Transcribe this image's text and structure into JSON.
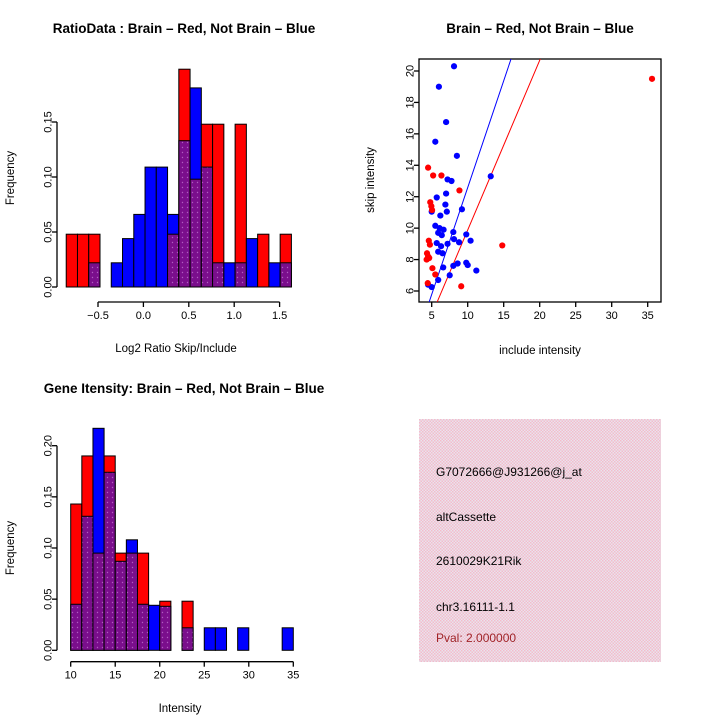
{
  "colors": {
    "red": "#ff0000",
    "blue": "#0000ff",
    "overlap": "#7a0e8c",
    "overlap_dot": "#b05cc0",
    "axis": "#000000",
    "background": "#ffffff"
  },
  "chart_data": [
    {
      "id": "ratio_hist",
      "type": "bar",
      "subtype": "overlaid-histogram",
      "title": "RatioData : Brain – Red, Not Brain – Blue",
      "xlabel": "Log2 Ratio Skip/Include",
      "ylabel": "Frequency",
      "bin_start": -0.85,
      "bin_width": 0.124,
      "xlim": [
        -0.85,
        1.63
      ],
      "ylim": [
        0,
        0.2
      ],
      "grid": false,
      "x_ticks": {
        "values": [
          -0.5,
          0.0,
          0.5,
          1.0,
          1.5
        ],
        "labels": [
          "−0.5",
          "0.0",
          "0.5",
          "1.0",
          "1.5"
        ]
      },
      "y_ticks": {
        "values": [
          0,
          0.05,
          0.1,
          0.15
        ],
        "labels": [
          "0.00",
          "0.05",
          "0.10",
          "0.15"
        ]
      },
      "series": [
        {
          "name": "Brain (red)",
          "color": "red",
          "values": [
            0.048,
            0.048,
            0.048,
            0,
            0,
            0,
            0,
            0,
            0,
            0.048,
            0.198,
            0.098,
            0.148,
            0.148,
            0,
            0.148,
            0,
            0.048,
            0,
            0.048
          ]
        },
        {
          "name": "Not Brain (blue)",
          "color": "blue",
          "values": [
            0,
            0,
            0.022,
            0,
            0.022,
            0.044,
            0.066,
            0.109,
            0.109,
            0.066,
            0.133,
            0.181,
            0.109,
            0.022,
            0.022,
            0.022,
            0.044,
            0,
            0.022,
            0.022
          ]
        }
      ]
    },
    {
      "id": "scatter",
      "type": "scatter",
      "title": "Brain – Red, Not Brain – Blue",
      "xlabel": "include intensity",
      "ylabel": "skip intensity",
      "xlim": [
        3.2,
        37
      ],
      "ylim": [
        5.3,
        20.8
      ],
      "grid": false,
      "x_ticks": {
        "values": [
          5,
          10,
          15,
          20,
          25,
          30,
          35
        ],
        "labels": [
          "5",
          "10",
          "15",
          "20",
          "25",
          "30",
          "35"
        ]
      },
      "y_ticks": {
        "values": [
          6,
          8,
          10,
          12,
          14,
          16,
          18,
          20
        ],
        "labels": [
          "6",
          "8",
          "10",
          "12",
          "14",
          "16",
          "18",
          "20"
        ]
      },
      "points": {
        "red": [
          [
            35.6,
            19.5
          ],
          [
            4.5,
            13.85
          ],
          [
            5.2,
            13.35
          ],
          [
            6.35,
            13.35
          ],
          [
            8.85,
            12.4
          ],
          [
            4.8,
            11.65
          ],
          [
            4.95,
            11.4
          ],
          [
            5.05,
            11.15
          ],
          [
            4.6,
            9.2
          ],
          [
            4.75,
            8.95
          ],
          [
            14.8,
            8.9
          ],
          [
            4.35,
            8.4
          ],
          [
            4.5,
            8.2
          ],
          [
            4.3,
            8.0
          ],
          [
            4.65,
            8.1
          ],
          [
            5.1,
            7.45
          ],
          [
            5.5,
            7.05
          ],
          [
            9.1,
            6.3
          ],
          [
            4.45,
            6.5
          ]
        ],
        "blue": [
          [
            8.1,
            20.3
          ],
          [
            6.0,
            19.0
          ],
          [
            7.0,
            16.75
          ],
          [
            5.5,
            15.5
          ],
          [
            8.5,
            14.6
          ],
          [
            13.2,
            13.3
          ],
          [
            7.2,
            13.1
          ],
          [
            7.75,
            13.0
          ],
          [
            7.0,
            12.2
          ],
          [
            5.7,
            11.95
          ],
          [
            9.2,
            11.2
          ],
          [
            6.9,
            11.5
          ],
          [
            7.1,
            11.05
          ],
          [
            5.0,
            11.05
          ],
          [
            6.2,
            10.8
          ],
          [
            5.5,
            10.15
          ],
          [
            6.1,
            10.0
          ],
          [
            6.65,
            9.9
          ],
          [
            5.9,
            9.7
          ],
          [
            6.4,
            9.55
          ],
          [
            8.0,
            9.75
          ],
          [
            9.8,
            9.6
          ],
          [
            8.8,
            9.1
          ],
          [
            10.4,
            9.2
          ],
          [
            7.2,
            9.0
          ],
          [
            8.1,
            9.3
          ],
          [
            5.7,
            9.05
          ],
          [
            6.3,
            8.85
          ],
          [
            5.9,
            8.5
          ],
          [
            6.5,
            8.4
          ],
          [
            8.6,
            7.75
          ],
          [
            10.0,
            7.65
          ],
          [
            11.2,
            7.3
          ],
          [
            8.0,
            7.6
          ],
          [
            7.5,
            7.0
          ],
          [
            6.6,
            7.5
          ],
          [
            9.8,
            7.8
          ],
          [
            5.9,
            6.7
          ],
          [
            5.0,
            6.25
          ],
          [
            4.5,
            6.4
          ]
        ]
      },
      "fit_lines": [
        {
          "color": "blue",
          "slope": 1.36,
          "intercept": -1.02
        },
        {
          "color": "red",
          "slope": 1.08,
          "intercept": -0.92
        }
      ]
    },
    {
      "id": "gene_hist",
      "type": "bar",
      "subtype": "overlaid-histogram",
      "title": "Gene Itensity: Brain – Red, Not Brain – Blue",
      "xlabel": "Intensity",
      "ylabel": "Frequency",
      "bin_start": 10,
      "bin_width": 1.25,
      "xlim": [
        10,
        35
      ],
      "ylim": [
        0,
        0.22
      ],
      "grid": false,
      "x_ticks": {
        "values": [
          10,
          15,
          20,
          25,
          30,
          35
        ],
        "labels": [
          "10",
          "15",
          "20",
          "25",
          "30",
          "35"
        ]
      },
      "y_ticks": {
        "values": [
          0,
          0.05,
          0.1,
          0.15,
          0.2
        ],
        "labels": [
          "0.00",
          "0.05",
          "0.10",
          "0.15",
          "0.20"
        ]
      },
      "series": [
        {
          "name": "Brain (red)",
          "color": "red",
          "values": [
            0.143,
            0.19,
            0.095,
            0.19,
            0.095,
            0.095,
            0.095,
            0,
            0.048,
            0,
            0.048,
            0,
            0,
            0,
            0,
            0,
            0,
            0,
            0,
            0
          ]
        },
        {
          "name": "Not Brain (blue)",
          "color": "blue",
          "values": [
            0.045,
            0.131,
            0.217,
            0.174,
            0.087,
            0.108,
            0.045,
            0.044,
            0.043,
            0,
            0.022,
            0,
            0.022,
            0.022,
            0,
            0.022,
            0,
            0,
            0,
            0.022
          ]
        }
      ]
    }
  ],
  "info_panel": {
    "lines": [
      "G7072666@J931266@j_at",
      "altCassette",
      "2610029K21Rik",
      "chr3.16111-1.1",
      "Pval: 2.000000"
    ],
    "text_color": "#000000",
    "pval_color": "#a02428",
    "bg_pink": "#f4bccb",
    "bg_dot": "#e9e3ee"
  }
}
